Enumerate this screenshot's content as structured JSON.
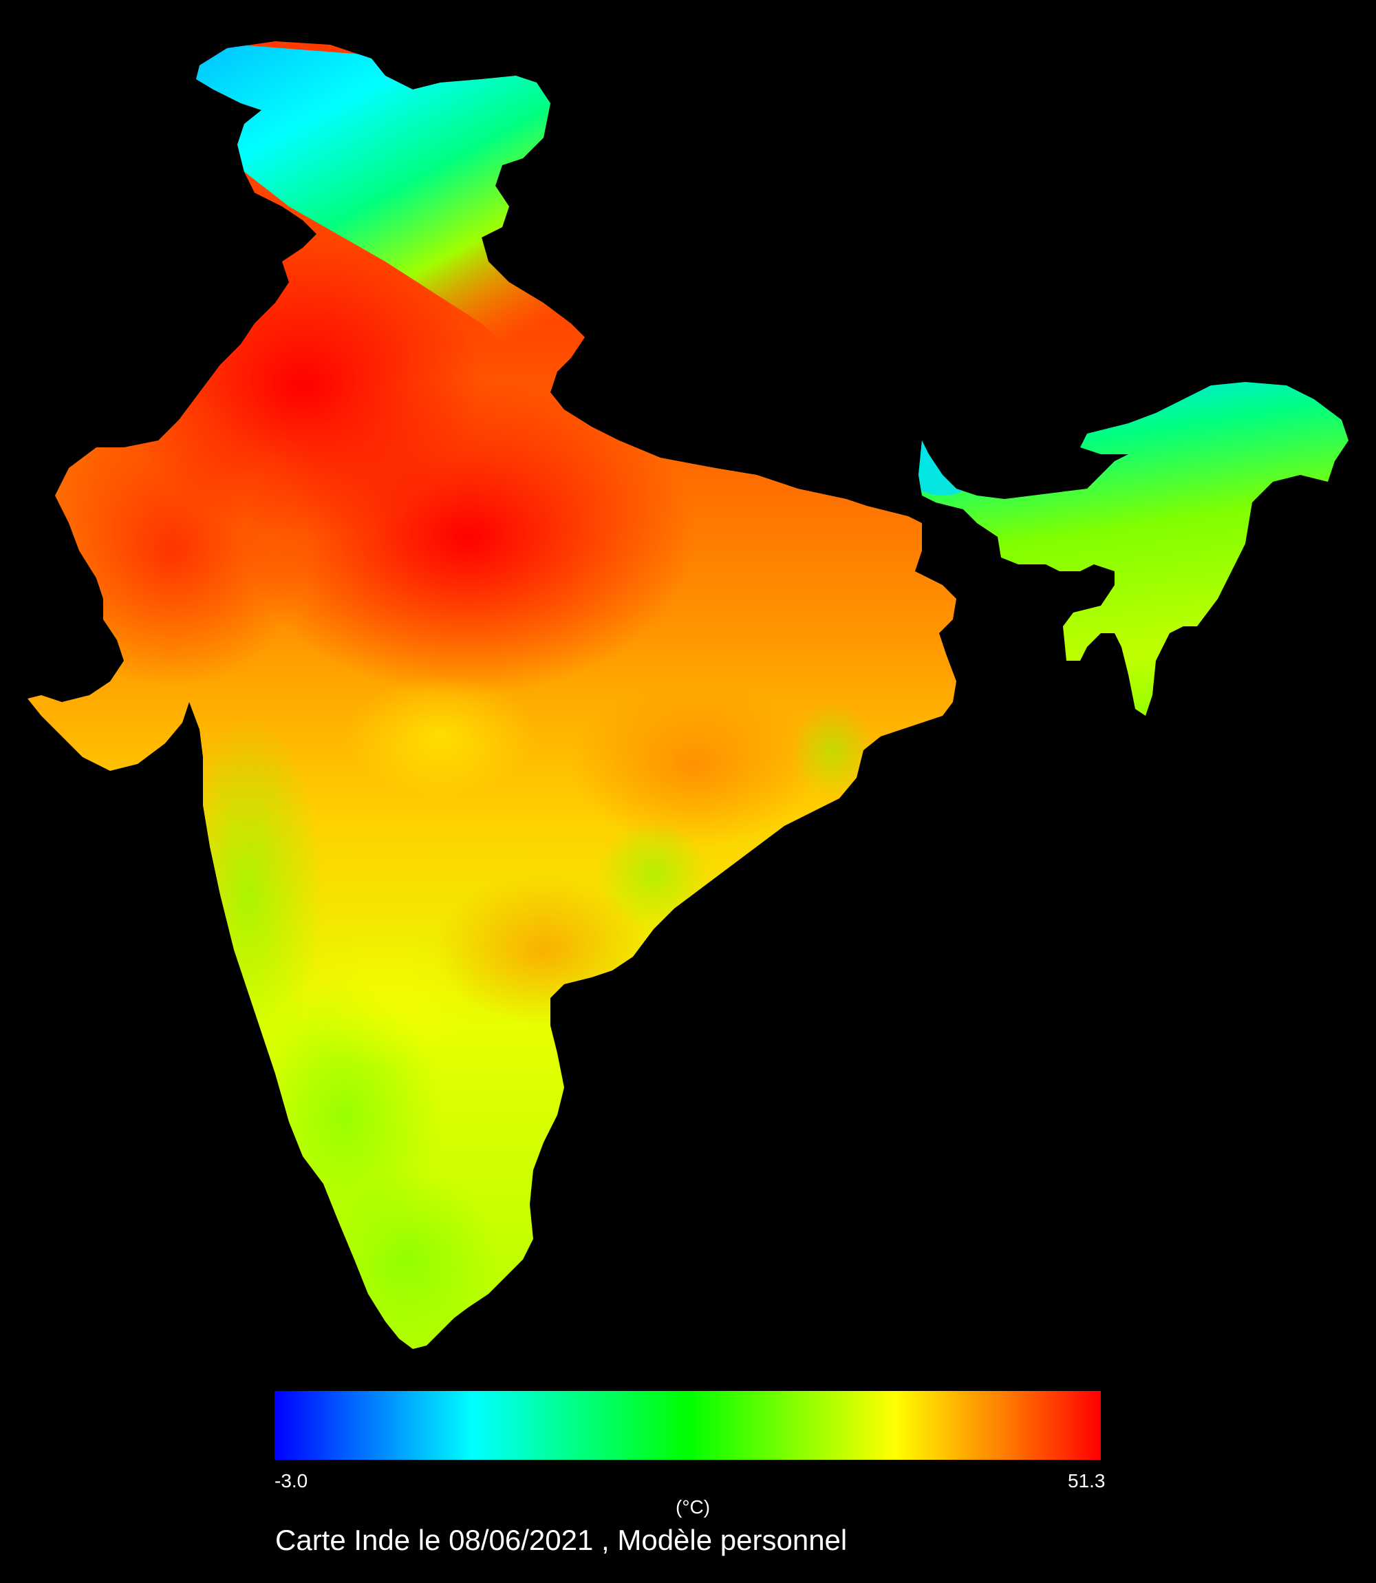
{
  "map": {
    "region": "India",
    "legend": {
      "min_label": "-3.0",
      "max_label": "51.3",
      "unit_label": "(°C)",
      "colors": [
        "#0000ff",
        "#00ffff",
        "#00ff00",
        "#ffff00",
        "#ff8000",
        "#ff0000"
      ]
    },
    "caption": "Carte Inde le 08/06/2021 , Modèle personnel"
  }
}
